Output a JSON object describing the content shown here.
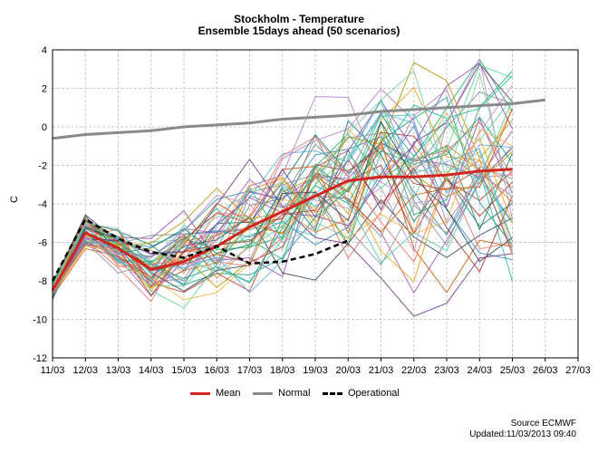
{
  "chart_data": {
    "type": "line",
    "title": "Stockholm - Temperature",
    "subtitle": "Ensemble 15days ahead (50 scenarios)",
    "ylabel": "C",
    "xlabel": "",
    "categories": [
      "11/03",
      "12/03",
      "13/03",
      "14/03",
      "15/03",
      "16/03",
      "17/03",
      "18/03",
      "19/03",
      "20/03",
      "21/03",
      "22/03",
      "23/03",
      "24/03",
      "25/03",
      "26/03",
      "27/03"
    ],
    "ylim": [
      -12,
      4
    ],
    "yticks": [
      -12,
      -10,
      -8,
      -6,
      -4,
      -2,
      0,
      2,
      4
    ],
    "grid": true,
    "legend_placement": "bottom",
    "series": [
      {
        "name": "Mean",
        "color": "#d0261f",
        "values": [
          -8.5,
          -5.5,
          -6.3,
          -7.4,
          -7.0,
          -6.2,
          -5.2,
          -4.4,
          -3.6,
          -2.8,
          -2.6,
          -2.6,
          -2.5,
          -2.3,
          -2.2,
          null,
          null
        ]
      },
      {
        "name": "Normal",
        "color": "#8a8a8a",
        "values": [
          -0.6,
          -0.4,
          -0.3,
          -0.2,
          0.0,
          0.1,
          0.2,
          0.4,
          0.5,
          0.6,
          0.8,
          0.9,
          1.0,
          1.1,
          1.2,
          1.4,
          null
        ]
      },
      {
        "name": "Operational",
        "color": "#000000",
        "values": [
          -8.0,
          -4.8,
          -5.8,
          -6.5,
          -6.8,
          -6.2,
          -7.1,
          -7.0,
          -6.6,
          -5.9,
          null,
          null,
          null,
          null,
          null,
          null,
          null
        ]
      }
    ],
    "ensemble": {
      "count": 50,
      "palette": [
        "#9b59b6",
        "#2e86c1",
        "#27ae60",
        "#f39c12",
        "#c0392b",
        "#16a085",
        "#8e44ad",
        "#d35400",
        "#7f8c8d",
        "#2c3e50",
        "#1abc9c",
        "#e67e22",
        "#6c3483",
        "#117a65",
        "#b7950b",
        "#a93226",
        "#5dade2",
        "#58d68d",
        "#af7ac5",
        "#f5b041",
        "#48c9b0",
        "#ec7063",
        "#85929e",
        "#7dcea0",
        "#bb8fce"
      ]
    }
  },
  "legend": {
    "mean": "Mean",
    "normal": "Normal",
    "operational": "Operational"
  },
  "source": {
    "line1": "Source ECMWF",
    "line2": "Updated:11/03/2013 09:40"
  }
}
